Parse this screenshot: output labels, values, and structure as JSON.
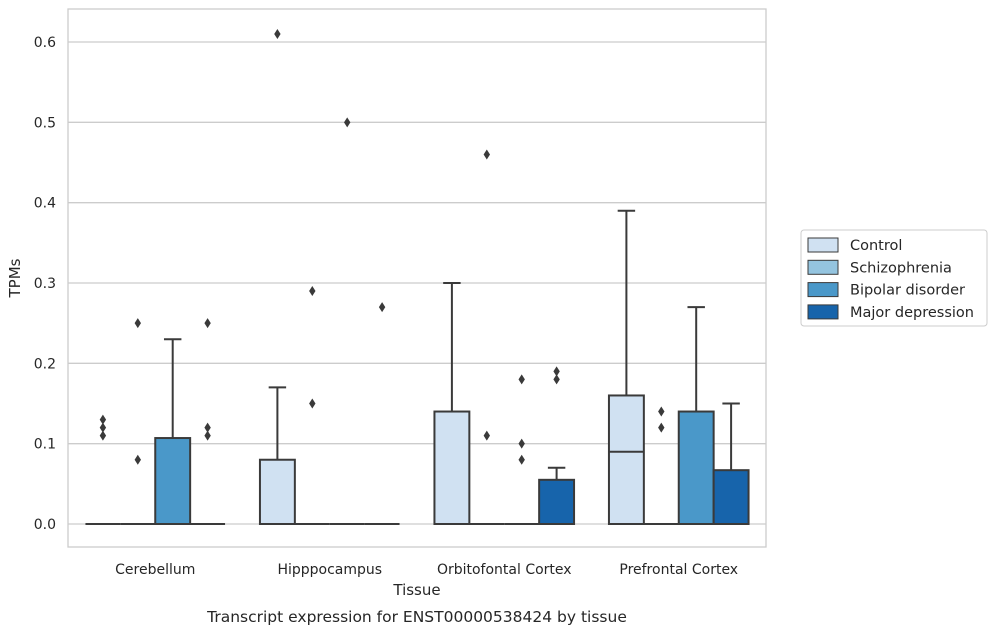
{
  "chart_data": {
    "type": "box",
    "title": "",
    "caption": "Transcript expression for ENST00000538424 by tissue",
    "xlabel": "Tissue",
    "ylabel": "TPMs",
    "ylim": [
      -0.03,
      0.64
    ],
    "yticks": [
      "0.0",
      "0.1",
      "0.2",
      "0.3",
      "0.4",
      "0.5",
      "0.6"
    ],
    "grid": "horizontal",
    "legend_position": "right",
    "categories": [
      "Cerebellum",
      "Hipppocampus",
      "Orbitofontal Cortex",
      "Prefrontal Cortex"
    ],
    "series": [
      {
        "name": "Control",
        "color": "#d0e1f2"
      },
      {
        "name": "Schizophrenia",
        "color": "#94c4df"
      },
      {
        "name": "Bipolar disorder",
        "color": "#4a98c9"
      },
      {
        "name": "Major depression",
        "color": "#1764ab"
      }
    ],
    "boxes": [
      {
        "category": 0,
        "series": 0,
        "q1": 0,
        "median": 0,
        "q3": 0,
        "whisker_low": 0,
        "whisker_high": 0,
        "outliers": [
          0.11,
          0.12,
          0.13
        ]
      },
      {
        "category": 0,
        "series": 1,
        "q1": 0,
        "median": 0,
        "q3": 0,
        "whisker_low": 0,
        "whisker_high": 0,
        "outliers": [
          0.08,
          0.25
        ]
      },
      {
        "category": 0,
        "series": 2,
        "q1": 0,
        "median": 0,
        "q3": 0.107,
        "whisker_low": 0,
        "whisker_high": 0.23,
        "outliers": []
      },
      {
        "category": 0,
        "series": 3,
        "q1": 0,
        "median": 0,
        "q3": 0,
        "whisker_low": 0,
        "whisker_high": 0,
        "outliers": [
          0.11,
          0.12,
          0.25
        ]
      },
      {
        "category": 1,
        "series": 0,
        "q1": 0,
        "median": 0,
        "q3": 0.08,
        "whisker_low": 0,
        "whisker_high": 0.17,
        "outliers": [
          0.61
        ]
      },
      {
        "category": 1,
        "series": 1,
        "q1": 0,
        "median": 0,
        "q3": 0,
        "whisker_low": 0,
        "whisker_high": 0,
        "outliers": [
          0.15,
          0.29
        ]
      },
      {
        "category": 1,
        "series": 2,
        "q1": 0,
        "median": 0,
        "q3": 0,
        "whisker_low": 0,
        "whisker_high": 0,
        "outliers": [
          0.5
        ]
      },
      {
        "category": 1,
        "series": 3,
        "q1": 0,
        "median": 0,
        "q3": 0,
        "whisker_low": 0,
        "whisker_high": 0,
        "outliers": [
          0.27
        ]
      },
      {
        "category": 2,
        "series": 0,
        "q1": 0,
        "median": 0,
        "q3": 0.14,
        "whisker_low": 0,
        "whisker_high": 0.3,
        "outliers": []
      },
      {
        "category": 2,
        "series": 1,
        "q1": 0,
        "median": 0,
        "q3": 0,
        "whisker_low": 0,
        "whisker_high": 0,
        "outliers": [
          0.11,
          0.46
        ]
      },
      {
        "category": 2,
        "series": 2,
        "q1": 0,
        "median": 0,
        "q3": 0,
        "whisker_low": 0,
        "whisker_high": 0,
        "outliers": [
          0.08,
          0.1,
          0.18
        ]
      },
      {
        "category": 2,
        "series": 3,
        "q1": 0,
        "median": 0,
        "q3": 0.055,
        "whisker_low": 0,
        "whisker_high": 0.07,
        "outliers": [
          0.18,
          0.19
        ]
      },
      {
        "category": 3,
        "series": 0,
        "q1": 0,
        "median": 0.09,
        "q3": 0.16,
        "whisker_low": 0,
        "whisker_high": 0.39,
        "outliers": []
      },
      {
        "category": 3,
        "series": 1,
        "q1": 0,
        "median": 0,
        "q3": 0,
        "whisker_low": 0,
        "whisker_high": 0,
        "outliers": [
          0.12,
          0.14
        ]
      },
      {
        "category": 3,
        "series": 2,
        "q1": 0,
        "median": 0,
        "q3": 0.14,
        "whisker_low": 0,
        "whisker_high": 0.27,
        "outliers": []
      },
      {
        "category": 3,
        "series": 3,
        "q1": 0,
        "median": 0,
        "q3": 0.067,
        "whisker_low": 0,
        "whisker_high": 0.15,
        "outliers": []
      }
    ]
  }
}
